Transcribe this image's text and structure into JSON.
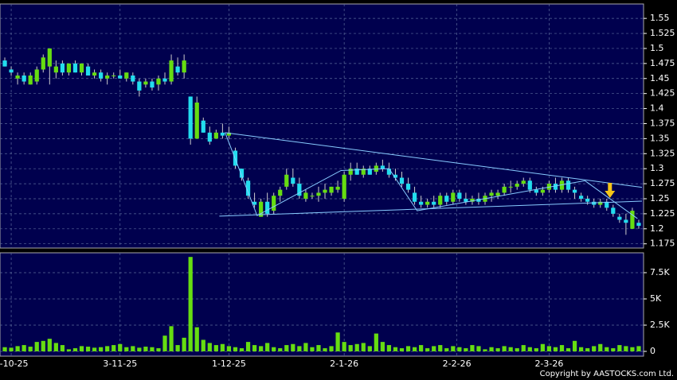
{
  "chart_data": {
    "type": "candlestick",
    "candles": [
      [
        1.48,
        1.485,
        1.47,
        1.47
      ],
      [
        1.465,
        1.47,
        1.455,
        1.46
      ],
      [
        1.45,
        1.46,
        1.44,
        1.455
      ],
      [
        1.455,
        1.46,
        1.44,
        1.445
      ],
      [
        1.44,
        1.46,
        1.44,
        1.455
      ],
      [
        1.445,
        1.47,
        1.44,
        1.465
      ],
      [
        1.465,
        1.49,
        1.46,
        1.485
      ],
      [
        1.47,
        1.5,
        1.44,
        1.5
      ],
      [
        1.46,
        1.48,
        1.45,
        1.47
      ],
      [
        1.475,
        1.48,
        1.455,
        1.46
      ],
      [
        1.46,
        1.475,
        1.455,
        1.475
      ],
      [
        1.475,
        1.48,
        1.46,
        1.46
      ],
      [
        1.46,
        1.475,
        1.455,
        1.475
      ],
      [
        1.47,
        1.475,
        1.455,
        1.455
      ],
      [
        1.455,
        1.465,
        1.45,
        1.46
      ],
      [
        1.46,
        1.465,
        1.445,
        1.45
      ],
      [
        1.45,
        1.46,
        1.44,
        1.455
      ],
      [
        1.455,
        1.46,
        1.45,
        1.455
      ],
      [
        1.455,
        1.465,
        1.45,
        1.45
      ],
      [
        1.45,
        1.46,
        1.445,
        1.46
      ],
      [
        1.455,
        1.46,
        1.44,
        1.445
      ],
      [
        1.445,
        1.45,
        1.42,
        1.43
      ],
      [
        1.44,
        1.45,
        1.435,
        1.445
      ],
      [
        1.445,
        1.45,
        1.43,
        1.435
      ],
      [
        1.44,
        1.455,
        1.43,
        1.45
      ],
      [
        1.45,
        1.46,
        1.44,
        1.445
      ],
      [
        1.445,
        1.49,
        1.44,
        1.48
      ],
      [
        1.47,
        1.485,
        1.455,
        1.46
      ],
      [
        1.46,
        1.49,
        1.45,
        1.48
      ],
      [
        1.42,
        1.42,
        1.34,
        1.35
      ],
      [
        1.35,
        1.42,
        1.35,
        1.41
      ],
      [
        1.38,
        1.385,
        1.36,
        1.36
      ],
      [
        1.36,
        1.37,
        1.34,
        1.345
      ],
      [
        1.35,
        1.365,
        1.35,
        1.36
      ],
      [
        1.36,
        1.375,
        1.35,
        1.355
      ],
      [
        1.355,
        1.37,
        1.35,
        1.36
      ],
      [
        1.33,
        1.335,
        1.3,
        1.305
      ],
      [
        1.3,
        1.3,
        1.28,
        1.285
      ],
      [
        1.28,
        1.285,
        1.25,
        1.255
      ],
      [
        1.245,
        1.26,
        1.235,
        1.24
      ],
      [
        1.22,
        1.25,
        1.22,
        1.245
      ],
      [
        1.245,
        1.26,
        1.22,
        1.225
      ],
      [
        1.23,
        1.26,
        1.225,
        1.255
      ],
      [
        1.255,
        1.27,
        1.245,
        1.265
      ],
      [
        1.27,
        1.3,
        1.265,
        1.29
      ],
      [
        1.285,
        1.3,
        1.27,
        1.275
      ],
      [
        1.275,
        1.285,
        1.25,
        1.255
      ],
      [
        1.25,
        1.265,
        1.245,
        1.26
      ],
      [
        1.255,
        1.26,
        1.25,
        1.255
      ],
      [
        1.255,
        1.27,
        1.245,
        1.26
      ],
      [
        1.26,
        1.275,
        1.25,
        1.265
      ],
      [
        1.26,
        1.27,
        1.255,
        1.27
      ],
      [
        1.265,
        1.28,
        1.26,
        1.27
      ],
      [
        1.25,
        1.295,
        1.245,
        1.29
      ],
      [
        1.29,
        1.31,
        1.28,
        1.3
      ],
      [
        1.3,
        1.31,
        1.29,
        1.29
      ],
      [
        1.29,
        1.305,
        1.285,
        1.3
      ],
      [
        1.3,
        1.305,
        1.29,
        1.29
      ],
      [
        1.295,
        1.31,
        1.29,
        1.305
      ],
      [
        1.305,
        1.315,
        1.295,
        1.3
      ],
      [
        1.3,
        1.31,
        1.285,
        1.29
      ],
      [
        1.29,
        1.3,
        1.28,
        1.285
      ],
      [
        1.285,
        1.295,
        1.27,
        1.275
      ],
      [
        1.275,
        1.285,
        1.26,
        1.265
      ],
      [
        1.26,
        1.27,
        1.24,
        1.245
      ],
      [
        1.245,
        1.255,
        1.235,
        1.24
      ],
      [
        1.24,
        1.25,
        1.235,
        1.245
      ],
      [
        1.245,
        1.255,
        1.235,
        1.24
      ],
      [
        1.24,
        1.26,
        1.235,
        1.255
      ],
      [
        1.255,
        1.26,
        1.24,
        1.245
      ],
      [
        1.245,
        1.265,
        1.24,
        1.26
      ],
      [
        1.26,
        1.265,
        1.245,
        1.25
      ],
      [
        1.25,
        1.26,
        1.24,
        1.245
      ],
      [
        1.245,
        1.255,
        1.24,
        1.25
      ],
      [
        1.25,
        1.26,
        1.24,
        1.245
      ],
      [
        1.245,
        1.26,
        1.24,
        1.255
      ],
      [
        1.255,
        1.265,
        1.245,
        1.26
      ],
      [
        1.255,
        1.265,
        1.25,
        1.26
      ],
      [
        1.26,
        1.275,
        1.255,
        1.27
      ],
      [
        1.27,
        1.28,
        1.26,
        1.27
      ],
      [
        1.27,
        1.28,
        1.265,
        1.275
      ],
      [
        1.275,
        1.285,
        1.27,
        1.28
      ],
      [
        1.28,
        1.285,
        1.26,
        1.265
      ],
      [
        1.265,
        1.27,
        1.255,
        1.26
      ],
      [
        1.26,
        1.27,
        1.255,
        1.265
      ],
      [
        1.265,
        1.28,
        1.26,
        1.275
      ],
      [
        1.275,
        1.285,
        1.26,
        1.265
      ],
      [
        1.265,
        1.285,
        1.26,
        1.28
      ],
      [
        1.28,
        1.285,
        1.26,
        1.265
      ],
      [
        1.265,
        1.27,
        1.25,
        1.26
      ],
      [
        1.255,
        1.26,
        1.245,
        1.25
      ],
      [
        1.25,
        1.255,
        1.24,
        1.245
      ],
      [
        1.245,
        1.25,
        1.235,
        1.24
      ],
      [
        1.24,
        1.25,
        1.235,
        1.245
      ],
      [
        1.245,
        1.25,
        1.23,
        1.235
      ],
      [
        1.235,
        1.24,
        1.22,
        1.225
      ],
      [
        1.22,
        1.225,
        1.21,
        1.215
      ],
      [
        1.215,
        1.225,
        1.19,
        1.21
      ],
      [
        1.2,
        1.235,
        1.2,
        1.23
      ],
      [
        1.21,
        1.215,
        1.2,
        1.205
      ]
    ],
    "volume": [
      400,
      350,
      500,
      600,
      450,
      900,
      1000,
      1200,
      800,
      600,
      200,
      300,
      500,
      450,
      350,
      400,
      500,
      600,
      700,
      400,
      500,
      350,
      450,
      400,
      300,
      1500,
      2400,
      600,
      1300,
      9000,
      2300,
      1100,
      800,
      600,
      700,
      500,
      400,
      300,
      900,
      600,
      500,
      800,
      400,
      300,
      600,
      700,
      500,
      800,
      400,
      600,
      300,
      500,
      1800,
      900,
      600,
      700,
      800,
      500,
      1700,
      900,
      600,
      400,
      300,
      500,
      400,
      600,
      300,
      500,
      600,
      300,
      500,
      400,
      300,
      600,
      500,
      200,
      400,
      300,
      500,
      400,
      300,
      600,
      400,
      300,
      700,
      500,
      400,
      600,
      300,
      1000,
      400,
      300,
      500,
      700,
      400,
      300,
      600,
      500,
      400,
      500
    ],
    "up_color": "#66dd11",
    "down_color": "#22ddee",
    "volume_color": "#66dd11",
    "xlim": [
      -0.75,
      99.75
    ],
    "xticks": [
      {
        "value": 1,
        "label": "2-10-25"
      },
      {
        "value": 18,
        "label": "3-11-25"
      },
      {
        "value": 35,
        "label": "1-12-25"
      },
      {
        "value": 53,
        "label": "2-1-26"
      },
      {
        "value": 70.6,
        "label": "2-2-26"
      },
      {
        "value": 85,
        "label": "2-3-26"
      }
    ],
    "ylim": [
      1.168,
      1.574
    ],
    "yticks": [
      1.175,
      1.2,
      1.225,
      1.25,
      1.275,
      1.3,
      1.325,
      1.35,
      1.375,
      1.4,
      1.425,
      1.45,
      1.475,
      1.5,
      1.525,
      1.55
    ],
    "vol_ylim": [
      -455,
      9242
    ],
    "vol_yticks": [
      0,
      {
        "value": 2500,
        "label": "2.5K"
      },
      {
        "value": 5000,
        "label": "5K"
      },
      {
        "value": 7500,
        "label": "7.5K"
      }
    ],
    "grid": true,
    "trendlines": [
      {
        "x": [
          34.4,
          99.5
        ],
        "y": [
          1.36,
          1.269
        ],
        "color": "#88ccff"
      },
      {
        "x": [
          33.5,
          99.5
        ],
        "y": [
          1.221,
          1.246
        ],
        "color": "#88ccff"
      },
      {
        "x": [
          34.4,
          39.4,
          52.5,
          60,
          64.4,
          90.6,
          98.8
        ],
        "y": [
          1.36,
          1.222,
          1.297,
          1.3,
          1.23,
          1.28,
          1.217
        ],
        "color": "#88ccff"
      }
    ],
    "marker": {
      "x": 94.5,
      "y": 1.25,
      "color": "#f5c518"
    },
    "copyright": "Copyright by AASTOCKS.com Ltd."
  }
}
